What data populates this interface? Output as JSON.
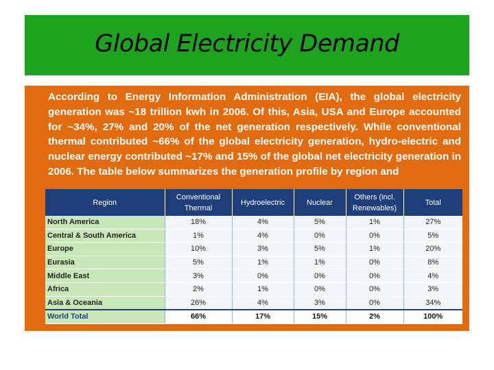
{
  "slide": {
    "title": "Global Electricity Demand",
    "paragraph": "According to Energy Information Administration (EIA), the global electricity generation was ~18 trillion kwh in 2006. Of this, Asia, USA and Europe accounted for ~34%, 27% and 20% of the net generation respectively. While conventional thermal contributed ~66% of the global electricity generation, hydro-electric and nuclear energy contributed ~17% and 15% of the global net electricity generation in 2006. The table below summarizes the generation profile by region and"
  },
  "colors": {
    "title_bar": "#1ea31e",
    "body_panel": "#e26b10",
    "table_header": "#1f3f7a",
    "region_cell": "#c8e8b8"
  },
  "table": {
    "headers": [
      "Region",
      "Conventional Thermal",
      "Hydroelectric",
      "Nuclear",
      "Others (incl. Renewables)",
      "Total"
    ],
    "rows": [
      [
        "North America",
        "18%",
        "4%",
        "5%",
        "1%",
        "27%"
      ],
      [
        "Central & South America",
        "1%",
        "4%",
        "0%",
        "0%",
        "5%"
      ],
      [
        "Europe",
        "10%",
        "3%",
        "5%",
        "1%",
        "20%"
      ],
      [
        "Eurasia",
        "5%",
        "1%",
        "1%",
        "0%",
        "8%"
      ],
      [
        "Middle East",
        "3%",
        "0%",
        "0%",
        "0%",
        "4%"
      ],
      [
        "Africa",
        "2%",
        "1%",
        "0%",
        "0%",
        "3%"
      ],
      [
        "Asia & Oceania",
        "26%",
        "4%",
        "3%",
        "0%",
        "34%"
      ]
    ],
    "total_row": [
      "World Total",
      "66%",
      "17%",
      "15%",
      "2%",
      "100%"
    ]
  }
}
